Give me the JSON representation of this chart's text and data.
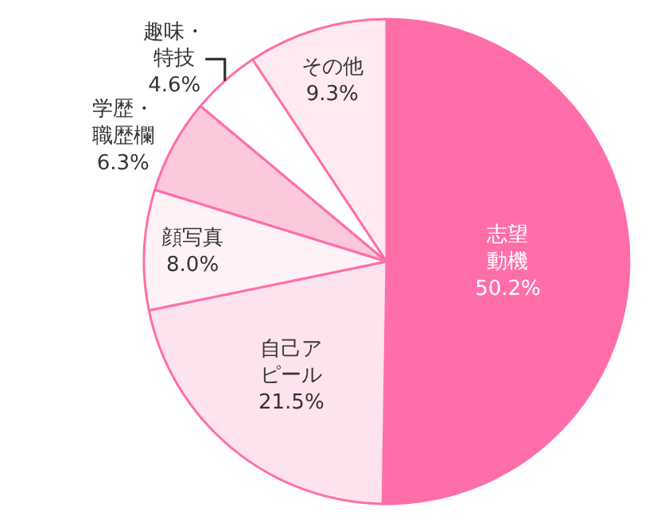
{
  "chart_data": {
    "type": "pie",
    "categories": [
      "志望動機",
      "自己アピール",
      "顔写真",
      "学歴・職歴欄",
      "趣味・特技",
      "その他"
    ],
    "values": [
      50.2,
      21.5,
      8.0,
      6.3,
      4.6,
      9.3
    ],
    "value_labels": [
      "50.2%",
      "21.5%",
      "8.0%",
      "6.3%",
      "4.6%",
      "9.3%"
    ],
    "colors": [
      "#ff6eaa",
      "#fde3ee",
      "#fff2f7",
      "#fcc8dc",
      "#ffffff",
      "#ffeaf2"
    ],
    "legend": false
  }
}
